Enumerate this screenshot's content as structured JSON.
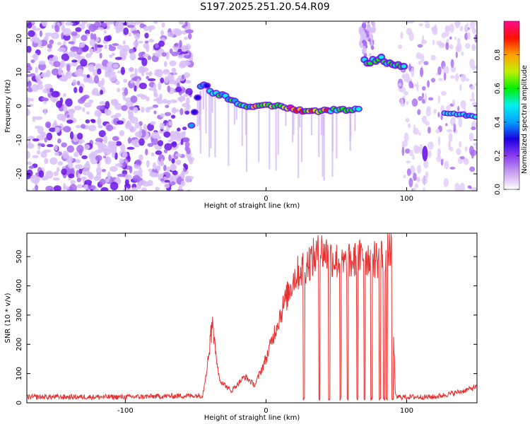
{
  "title": "S197.2025.251.20.54.R09",
  "chart_data": [
    {
      "type": "heatmap",
      "panel": "spectrogram",
      "xlabel": "Height of straight line (km)",
      "ylabel": "Frequency (Hz)",
      "xlim": [
        -170,
        150
      ],
      "ylim": [
        -25,
        25
      ],
      "xticks": [
        -100,
        0,
        100
      ],
      "yticks": [
        -20,
        -10,
        0,
        10,
        20
      ],
      "colorbar": {
        "label": "Normalized spectral amplitude",
        "range": [
          0,
          1
        ],
        "ticks": [
          0.0,
          0.2,
          0.4,
          0.6,
          0.8
        ]
      },
      "signal_ridge": [
        {
          "x": -53,
          "y": -6
        },
        {
          "x": -48,
          "y": 4
        },
        {
          "x": -45,
          "y": 7
        },
        {
          "x": -38,
          "y": 4
        },
        {
          "x": -30,
          "y": 3
        },
        {
          "x": -20,
          "y": 1
        },
        {
          "x": -10,
          "y": -0.5
        },
        {
          "x": 0,
          "y": 0
        },
        {
          "x": 10,
          "y": 0
        },
        {
          "x": 20,
          "y": -1
        },
        {
          "x": 30,
          "y": -1.5
        },
        {
          "x": 40,
          "y": -1.5
        },
        {
          "x": 50,
          "y": -1
        },
        {
          "x": 60,
          "y": -1
        },
        {
          "x": 68,
          "y": -1
        },
        {
          "x": 73,
          "y": 13
        },
        {
          "x": 80,
          "y": 14
        },
        {
          "x": 88,
          "y": 13
        },
        {
          "x": 97,
          "y": 12
        },
        {
          "x": 128,
          "y": -2
        },
        {
          "x": 138,
          "y": -2.5
        },
        {
          "x": 148,
          "y": -3
        }
      ]
    },
    {
      "type": "line",
      "panel": "snr",
      "xlabel": "Height of straight line (km)",
      "ylabel": "SNR (10 * v/v)",
      "xlim": [
        -170,
        150
      ],
      "ylim": [
        0,
        580
      ],
      "xticks": [
        -100,
        0,
        100
      ],
      "yticks": [
        0,
        100,
        200,
        300,
        400,
        500
      ],
      "series": [
        {
          "name": "SNR",
          "color": "#e83030",
          "envelope": [
            {
              "x": -170,
              "y": 20
            },
            {
              "x": -100,
              "y": 20
            },
            {
              "x": -45,
              "y": 25
            },
            {
              "x": -38,
              "y": 250
            },
            {
              "x": -33,
              "y": 80
            },
            {
              "x": -25,
              "y": 40
            },
            {
              "x": -15,
              "y": 90
            },
            {
              "x": -8,
              "y": 60
            },
            {
              "x": 0,
              "y": 150
            },
            {
              "x": 10,
              "y": 300
            },
            {
              "x": 20,
              "y": 430
            },
            {
              "x": 30,
              "y": 480
            },
            {
              "x": 40,
              "y": 520
            },
            {
              "x": 55,
              "y": 470
            },
            {
              "x": 70,
              "y": 500
            },
            {
              "x": 80,
              "y": 490
            },
            {
              "x": 89,
              "y": 530
            },
            {
              "x": 92,
              "y": 20
            },
            {
              "x": 120,
              "y": 20
            },
            {
              "x": 140,
              "y": 40
            },
            {
              "x": 150,
              "y": 55
            }
          ],
          "dropouts_x": [
            27,
            38,
            45,
            53,
            58,
            65,
            70,
            75,
            81,
            84,
            86,
            90
          ]
        }
      ]
    }
  ]
}
